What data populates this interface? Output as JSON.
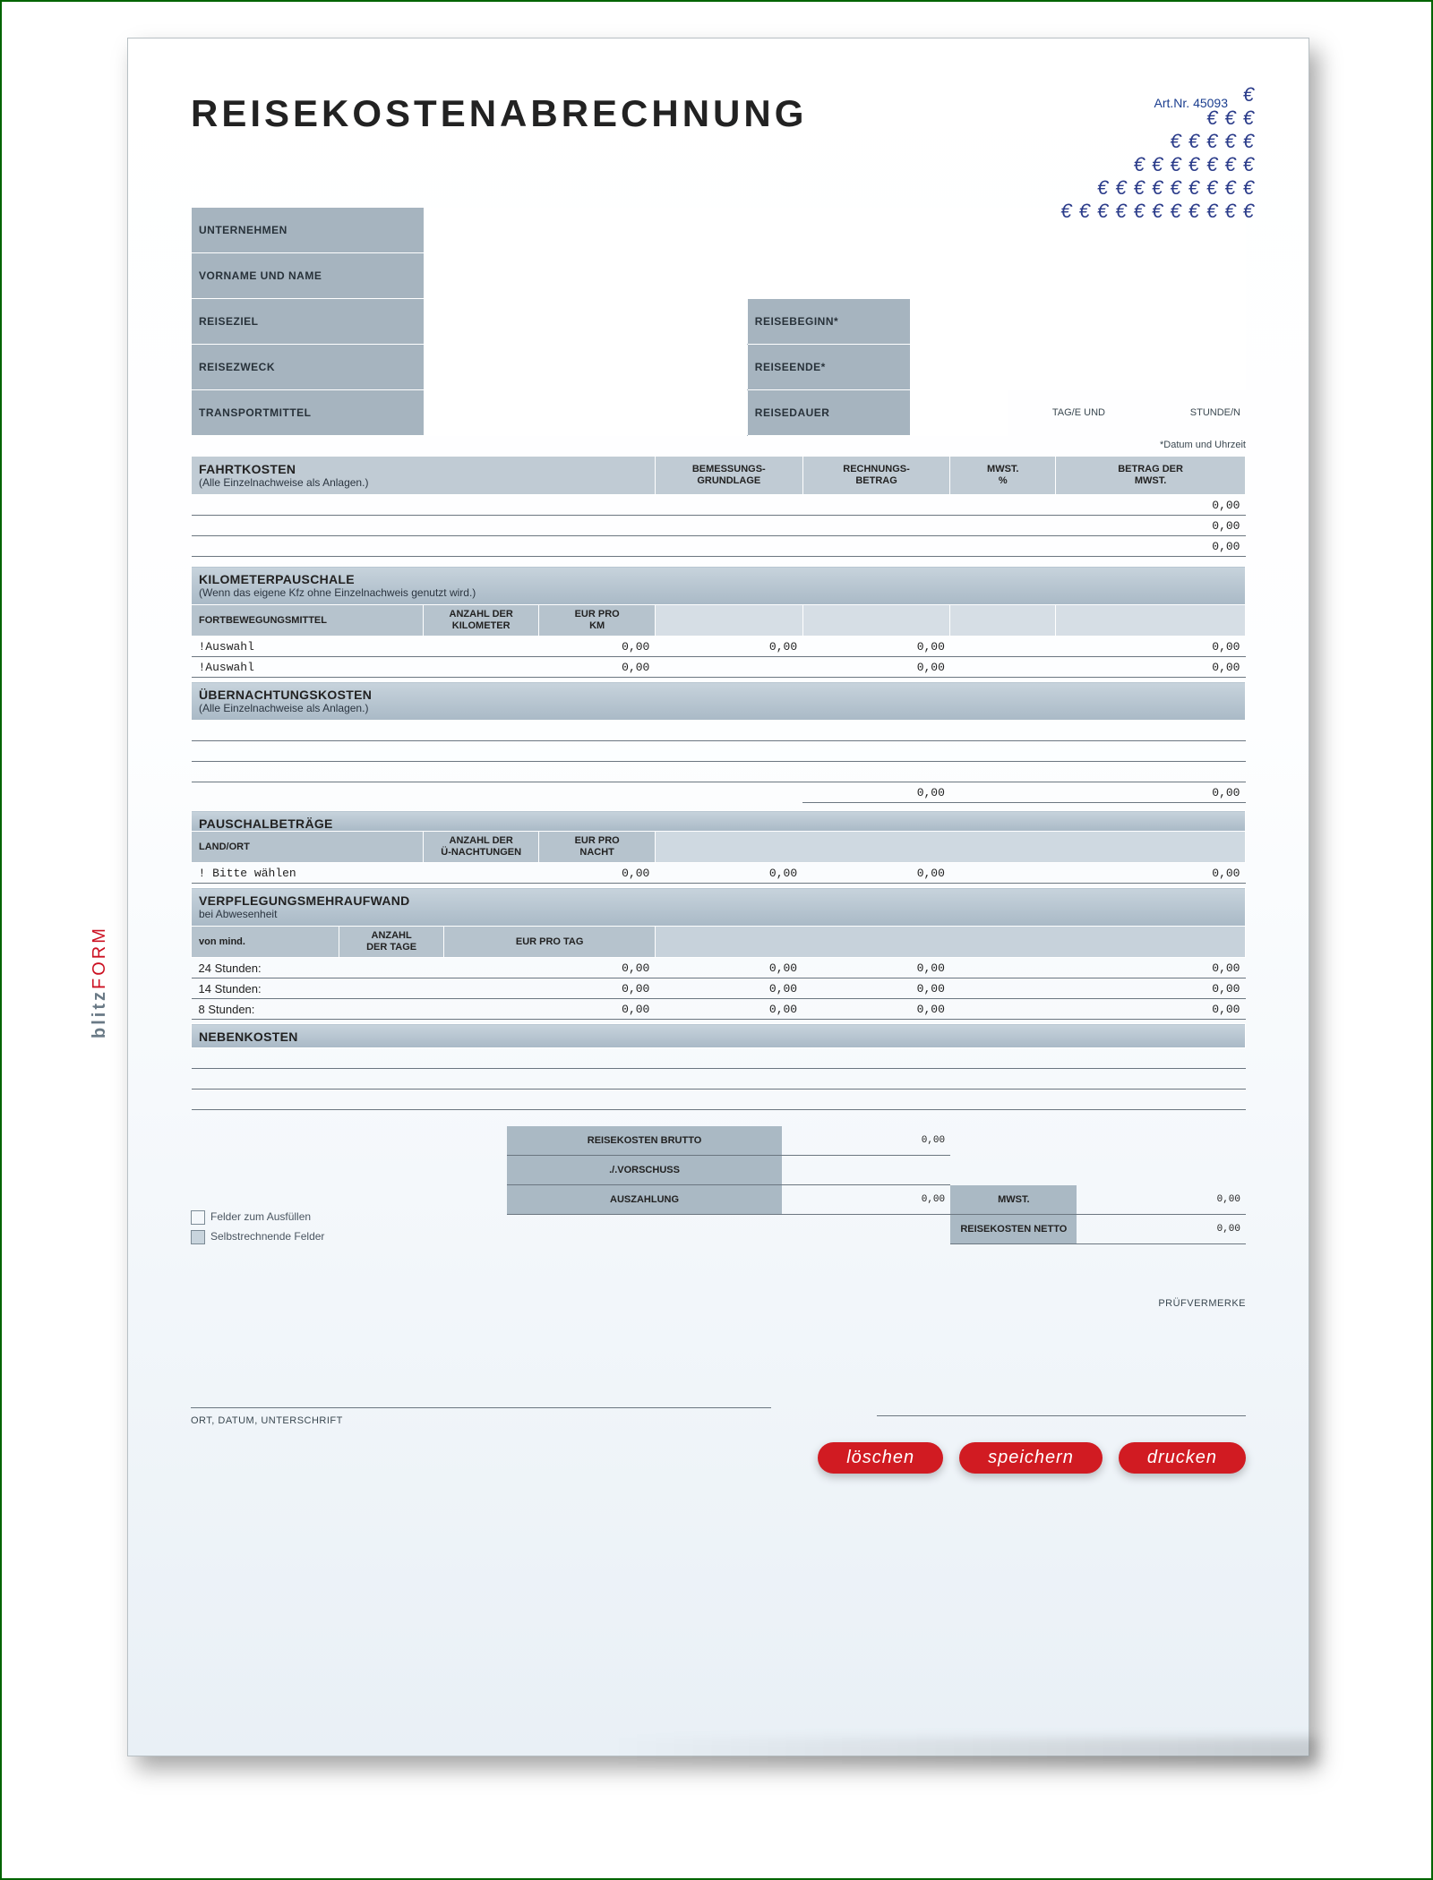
{
  "meta": {
    "art_nr_label": "Art.Nr.",
    "art_nr": "45093"
  },
  "brand": {
    "form": "FORM",
    "blitz": "blitz"
  },
  "title": "REISEKOSTENABRECHNUNG",
  "info": {
    "labels": {
      "unternehmen": "UNTERNEHMEN",
      "vorname_name": "VORNAME UND NAME",
      "reiseziel": "REISEZIEL",
      "reisezweck": "REISEZWECK",
      "transportmittel": "TRANSPORTMITTEL",
      "reisebeginn": "REISEBEGINN*",
      "reiseende": "REISEENDE*",
      "reisedauer": "REISEDAUER",
      "tag_e": "TAG/E UND",
      "stunde_n": "STUNDE/N"
    },
    "footnote": "*Datum und Uhrzeit"
  },
  "columns": {
    "bemessung": "BEMESSUNGS-\nGRUNDLAGE",
    "rechnung": "RECHNUNGS-\nBETRAG",
    "mwst_pct": "MWST.\n%",
    "betrag_mwst": "BETRAG DER\nMWST."
  },
  "fahrtkosten": {
    "title": "FAHRTKOSTEN",
    "sub": "(Alle Einzelnachweise als Anlagen.)",
    "rows": [
      "0,00",
      "0,00",
      "0,00"
    ]
  },
  "km": {
    "title": "KILOMETERPAUSCHALE",
    "sub": "(Wenn das eigene Kfz ohne Einzelnachweis genutzt wird.)",
    "col_fort": "FORTBEWEGUNGSMITTEL",
    "col_anz": "ANZAHL DER\nKILOMETER",
    "col_eur": "EUR PRO\nKM",
    "rows": [
      {
        "fort": "!Auswahl",
        "km": "",
        "eur": "0,00",
        "b": "0,00",
        "r": "0,00",
        "mp": "",
        "mw": "0,00"
      },
      {
        "fort": "!Auswahl",
        "km": "",
        "eur": "0,00",
        "b": "",
        "r": "0,00",
        "mp": "",
        "mw": "0,00"
      }
    ]
  },
  "uebernacht": {
    "title": "ÜBERNACHTUNGSKOSTEN",
    "sub": "(Alle Einzelnachweise als Anlagen.)",
    "empty_rows": 3,
    "total_row": {
      "r": "0,00",
      "mw": "0,00"
    }
  },
  "pauschal": {
    "title": "PAUSCHALBETRÄGE",
    "col_land": "LAND/ORT",
    "col_anz": "ANZAHL DER\nÜ-NACHTUNGEN",
    "col_eur": "EUR PRO\nNACHT",
    "row": {
      "land": "! Bitte wählen",
      "anz": "",
      "eur": "0,00",
      "b": "0,00",
      "r": "0,00",
      "mw": "0,00"
    }
  },
  "verpfleg": {
    "title": "VERPFLEGUNGSMEHRAUFWAND",
    "sub": "bei Abwesenheit",
    "col_von": "von mind.",
    "col_anz": "ANZAHL\nDER TAGE",
    "col_eur": "EUR PRO TAG",
    "rows": [
      {
        "h": "24 Stunden:",
        "eur": "0,00",
        "b": "0,00",
        "r": "0,00",
        "mw": "0,00"
      },
      {
        "h": "14 Stunden:",
        "eur": "0,00",
        "b": "0,00",
        "r": "0,00",
        "mw": "0,00"
      },
      {
        "h": "8 Stunden:",
        "eur": "0,00",
        "b": "0,00",
        "r": "0,00",
        "mw": "0,00"
      }
    ]
  },
  "nebenkosten": {
    "title": "NEBENKOSTEN",
    "empty_rows": 3
  },
  "legend": {
    "fill": "Felder zum Ausfüllen",
    "calc": "Selbstrechnende Felder"
  },
  "summary": {
    "brutto": {
      "label": "REISEKOSTEN BRUTTO",
      "v": "0,00"
    },
    "vorschuss": {
      "label": "./.VORSCHUSS",
      "v": ""
    },
    "auszahlung": {
      "label": "AUSZAHLUNG",
      "v": "0,00"
    },
    "mwst": {
      "label": "MWST.",
      "v": "0,00"
    },
    "netto": {
      "label": "REISEKOSTEN NETTO",
      "v": "0,00"
    }
  },
  "signature": {
    "ort": "ORT, DATUM, UNTERSCHRIFT",
    "pruf": "PRÜFVERMERKE"
  },
  "buttons": {
    "loeschen": "löschen",
    "speichern": "speichern",
    "drucken": "drucken"
  },
  "zero": "0,00"
}
